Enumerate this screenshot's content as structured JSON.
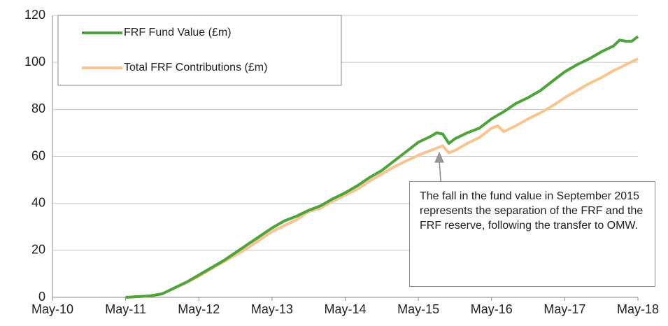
{
  "chart_data": {
    "type": "line",
    "x": [
      "May-11",
      "Jul-11",
      "Sep-11",
      "Nov-11",
      "Jan-12",
      "Mar-12",
      "May-12",
      "Jul-12",
      "Sep-12",
      "Nov-12",
      "Jan-13",
      "Mar-13",
      "May-13",
      "Jul-13",
      "Sep-13",
      "Nov-13",
      "Jan-14",
      "Mar-14",
      "May-14",
      "Jul-14",
      "Sep-14",
      "Nov-14",
      "Jan-15",
      "Mar-15",
      "May-15",
      "Jul-15",
      "Aug-15",
      "Sep-15",
      "Oct-15",
      "Nov-15",
      "Jan-16",
      "Mar-16",
      "May-16",
      "Jun-16",
      "Jul-16",
      "Sep-16",
      "Nov-16",
      "Jan-17",
      "Mar-17",
      "May-17",
      "Jul-17",
      "Sep-17",
      "Nov-17",
      "Jan-18",
      "Feb-18",
      "Mar-18",
      "Apr-18",
      "May-18"
    ],
    "series": [
      {
        "name": "FRF Fund Value (£m)",
        "color": "#4ea33a",
        "values": [
          0,
          0.3,
          0.6,
          1.5,
          4,
          6.5,
          9.5,
          12.5,
          15.5,
          19,
          22.5,
          26,
          29.5,
          32.5,
          34.5,
          37,
          39,
          42,
          44.5,
          47.5,
          51,
          54,
          58,
          62,
          66,
          68.5,
          70,
          69.5,
          65.5,
          67.5,
          70,
          72,
          76,
          77.5,
          79,
          82.5,
          85,
          88,
          92,
          96,
          99,
          101.5,
          104.5,
          107,
          109.5,
          109,
          109,
          111
        ]
      },
      {
        "name": "Total FRF Contributions (£m)",
        "color": "#f8c490",
        "values": [
          0,
          0.3,
          0.6,
          1.5,
          4,
          6.3,
          9,
          12,
          15,
          18,
          21,
          24.5,
          28,
          30.5,
          33,
          36.5,
          38,
          41,
          43.5,
          46,
          49.5,
          52.5,
          55.5,
          58,
          60.5,
          62.5,
          63.5,
          64.5,
          61.5,
          62.5,
          65.5,
          68,
          72,
          73,
          70.5,
          73,
          76,
          78.5,
          81.5,
          85,
          88,
          91,
          93.5,
          96.5,
          97.7,
          99,
          100.3,
          101.5
        ]
      }
    ],
    "xlim": [
      "May-10",
      "May-18"
    ],
    "xticks": [
      "May-10",
      "May-11",
      "May-12",
      "May-13",
      "May-14",
      "May-15",
      "May-16",
      "May-17",
      "May-18"
    ],
    "ylim": [
      0,
      120
    ],
    "yticks": [
      0,
      20,
      40,
      60,
      80,
      100,
      120
    ],
    "grid": true,
    "annotation": "The fall in the fund value in September 2015 represents the separation of the FRF and the FRF reserve, following the transfer to OMW."
  }
}
